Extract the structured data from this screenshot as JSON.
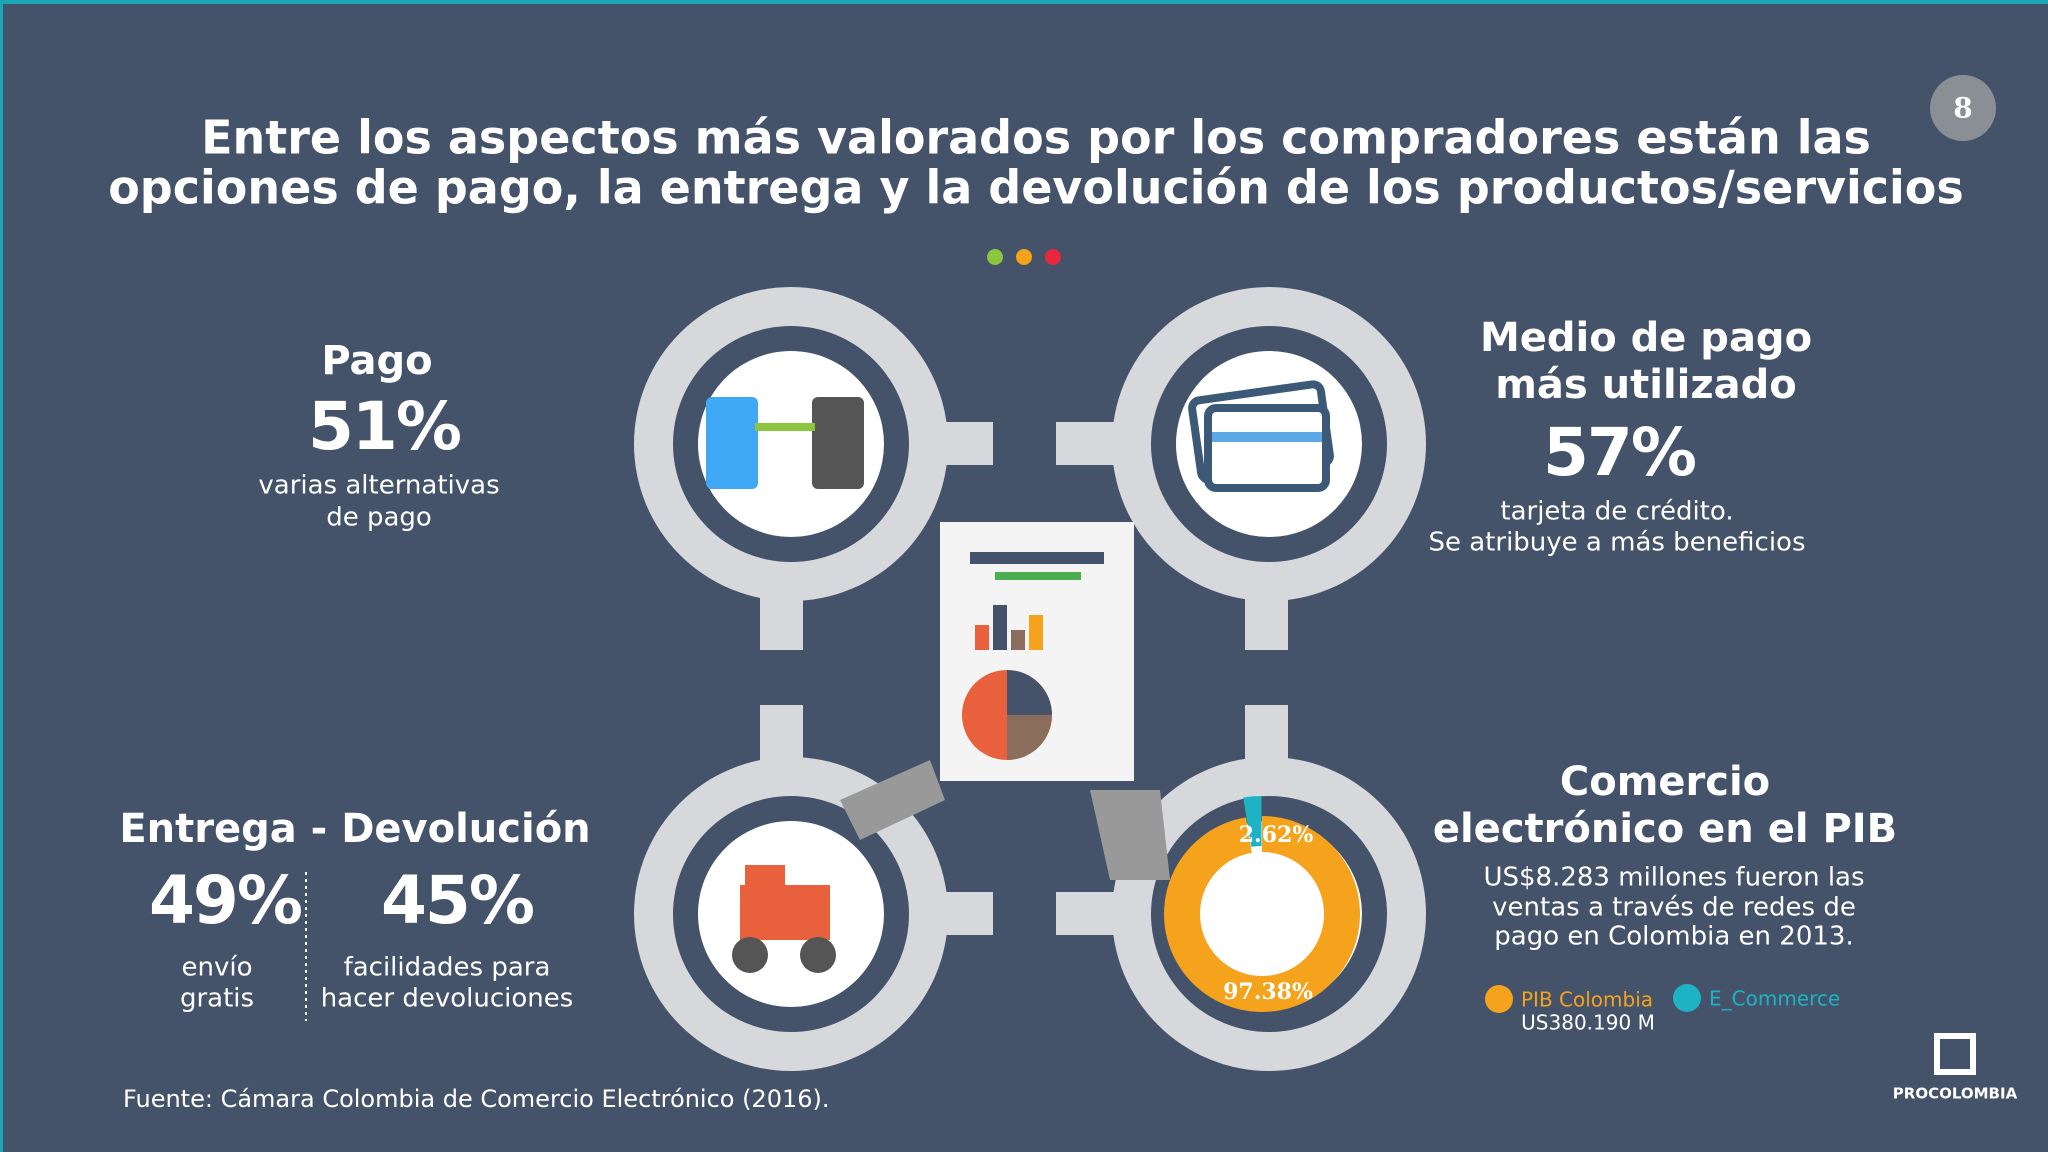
{
  "slide_number": "8",
  "title": [
    "Entre los aspectos más valorados por los compradores están las",
    "opciones de pago, la entrega y la devolución de los productos/servicios"
  ],
  "pago": {
    "heading": "Pago",
    "value": "51%",
    "caption": [
      "varias alternativas",
      "de pago"
    ]
  },
  "medio_de_pago": {
    "heading": [
      "Medio de pago",
      "más utilizado"
    ],
    "value": "57%",
    "caption": [
      "tarjeta de crédito.",
      "Se atribuye a más beneficios"
    ]
  },
  "entrega_devolucion": {
    "heading": "Entrega - Devolución",
    "items": [
      {
        "value": "49%",
        "caption": [
          "envío",
          "gratis"
        ]
      },
      {
        "value": "45%",
        "caption": [
          "facilidades para",
          "hacer devoluciones"
        ]
      }
    ]
  },
  "comercio": {
    "heading": [
      "Comercio",
      "electrónico en el PIB"
    ],
    "caption": [
      "US$8.283 millones fueron las",
      "ventas a través de redes de",
      "pago en Colombia en 2013."
    ]
  },
  "chart_data": {
    "type": "pie",
    "categories": [
      "PIB Colombia",
      "E_Commerce"
    ],
    "values": [
      97.38,
      2.62
    ],
    "value_labels": [
      "97.38%",
      "2.62%"
    ],
    "colors": [
      "#f5a21c",
      "#1db3c4"
    ],
    "legend_note": "US380.190 M"
  },
  "source": "Fuente: Cámara Colombia de Comercio Electrónico (2016).",
  "logo": "PROCOLOMBIA"
}
